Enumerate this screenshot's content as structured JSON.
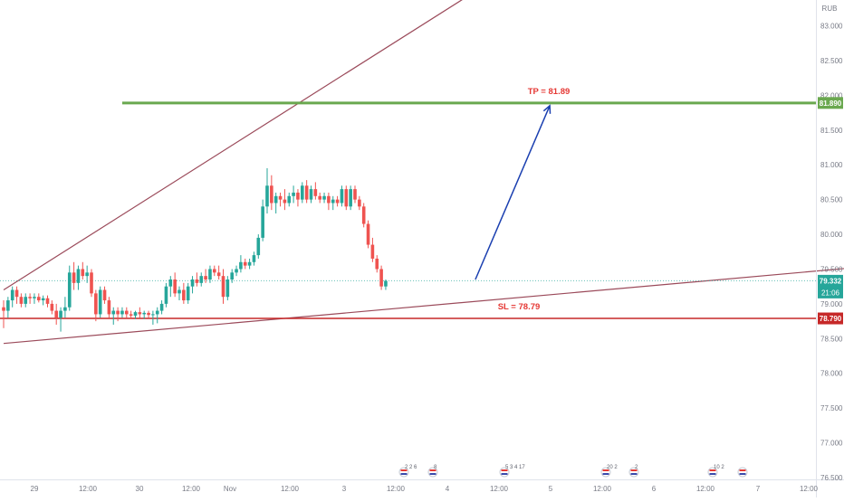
{
  "chart_data": {
    "type": "candlestick",
    "currency": "RUB",
    "price_axis": {
      "ylim": [
        76.5,
        83.15
      ],
      "ticks": [
        "83.000",
        "82.500",
        "82.000",
        "81.500",
        "81.000",
        "80.500",
        "80.000",
        "79.500",
        "79.000",
        "78.500",
        "78.000",
        "77.500",
        "77.000",
        "76.500"
      ]
    },
    "time_axis": {
      "ticks": [
        "29",
        "12:00",
        "30",
        "12:00",
        "Nov",
        "12:00",
        "3",
        "12:00",
        "4",
        "12:00",
        "5",
        "12:00",
        "6",
        "12:00",
        "7",
        "12:00"
      ]
    },
    "current_price": {
      "value": "79.332",
      "countdown": "21:06"
    },
    "levels": [
      {
        "name": "TP",
        "label": "TP = 81.89",
        "value": 81.89,
        "axis_label": "81.890",
        "color": "#6aa84f",
        "label_color": "#e53935"
      },
      {
        "name": "SL",
        "label": "SL = 78.79",
        "value": 78.79,
        "axis_label": "78.790",
        "color": "#c62828",
        "label_color": "#e53935"
      }
    ],
    "trendlines": [
      {
        "name": "upper-channel",
        "from": [
          0,
          79.2
        ],
        "to": [
          105,
          83.4
        ],
        "color": "#9b4a5a"
      },
      {
        "name": "lower-channel",
        "from": [
          0,
          78.43
        ],
        "to": [
          270,
          79.95
        ],
        "color": "#9b4a5a"
      }
    ],
    "projection_arrow": {
      "from": [
        107,
        79.35
      ],
      "to": [
        126,
        81.89
      ],
      "color": "#1a3fb0"
    },
    "candles": [
      [
        78.95,
        79.05,
        78.65,
        78.9
      ],
      [
        78.9,
        79.1,
        78.8,
        79.05
      ],
      [
        79.05,
        79.25,
        78.95,
        79.2
      ],
      [
        79.2,
        79.25,
        79.0,
        79.1
      ],
      [
        79.1,
        79.15,
        78.95,
        79.0
      ],
      [
        79.0,
        79.15,
        78.95,
        79.1
      ],
      [
        79.1,
        79.15,
        79.0,
        79.08
      ],
      [
        79.08,
        79.15,
        79.0,
        79.1
      ],
      [
        79.1,
        79.15,
        79.02,
        79.05
      ],
      [
        79.05,
        79.12,
        78.98,
        79.08
      ],
      [
        79.08,
        79.12,
        78.95,
        79.0
      ],
      [
        79.0,
        79.05,
        78.85,
        78.9
      ],
      [
        78.9,
        79.0,
        78.7,
        78.8
      ],
      [
        78.8,
        78.95,
        78.6,
        78.9
      ],
      [
        78.9,
        79.1,
        78.8,
        78.95
      ],
      [
        78.95,
        79.55,
        78.9,
        79.45
      ],
      [
        79.45,
        79.6,
        79.2,
        79.3
      ],
      [
        79.3,
        79.55,
        79.2,
        79.5
      ],
      [
        79.5,
        79.6,
        79.35,
        79.4
      ],
      [
        79.4,
        79.55,
        79.3,
        79.45
      ],
      [
        79.45,
        79.5,
        79.1,
        79.15
      ],
      [
        79.15,
        79.2,
        78.75,
        78.85
      ],
      [
        78.85,
        79.25,
        78.8,
        79.2
      ],
      [
        79.2,
        79.25,
        79.0,
        79.05
      ],
      [
        79.05,
        79.1,
        78.8,
        78.85
      ],
      [
        78.85,
        78.95,
        78.7,
        78.9
      ],
      [
        78.9,
        78.95,
        78.75,
        78.85
      ],
      [
        78.85,
        78.95,
        78.8,
        78.9
      ],
      [
        78.9,
        78.95,
        78.8,
        78.85
      ],
      [
        78.85,
        78.9,
        78.78,
        78.83
      ],
      [
        78.83,
        78.9,
        78.78,
        78.88
      ],
      [
        78.88,
        78.95,
        78.8,
        78.85
      ],
      [
        78.85,
        78.9,
        78.78,
        78.87
      ],
      [
        78.87,
        78.9,
        78.8,
        78.84
      ],
      [
        78.84,
        78.9,
        78.7,
        78.85
      ],
      [
        78.85,
        78.95,
        78.72,
        78.9
      ],
      [
        78.9,
        79.05,
        78.85,
        79.0
      ],
      [
        79.0,
        79.3,
        78.95,
        79.25
      ],
      [
        79.25,
        79.4,
        79.1,
        79.35
      ],
      [
        79.35,
        79.45,
        79.1,
        79.15
      ],
      [
        79.15,
        79.25,
        79.05,
        79.2
      ],
      [
        79.2,
        79.3,
        79.0,
        79.05
      ],
      [
        79.05,
        79.3,
        79.0,
        79.25
      ],
      [
        79.25,
        79.4,
        79.15,
        79.35
      ],
      [
        79.35,
        79.45,
        79.25,
        79.3
      ],
      [
        79.3,
        79.45,
        79.25,
        79.4
      ],
      [
        79.4,
        79.5,
        79.3,
        79.35
      ],
      [
        79.35,
        79.55,
        79.3,
        79.5
      ],
      [
        79.5,
        79.55,
        79.4,
        79.45
      ],
      [
        79.45,
        79.55,
        79.35,
        79.4
      ],
      [
        79.4,
        79.5,
        79.0,
        79.1
      ],
      [
        79.1,
        79.4,
        79.05,
        79.35
      ],
      [
        79.35,
        79.5,
        79.3,
        79.45
      ],
      [
        79.45,
        79.55,
        79.4,
        79.5
      ],
      [
        79.5,
        79.7,
        79.45,
        79.6
      ],
      [
        79.6,
        79.65,
        79.5,
        79.55
      ],
      [
        79.55,
        79.65,
        79.5,
        79.6
      ],
      [
        79.6,
        79.75,
        79.55,
        79.7
      ],
      [
        79.7,
        80.0,
        79.65,
        79.95
      ],
      [
        79.95,
        80.5,
        79.9,
        80.4
      ],
      [
        80.4,
        80.95,
        80.3,
        80.7
      ],
      [
        80.7,
        80.85,
        80.35,
        80.45
      ],
      [
        80.45,
        80.6,
        80.3,
        80.55
      ],
      [
        80.55,
        80.6,
        80.4,
        80.5
      ],
      [
        80.5,
        80.65,
        80.35,
        80.45
      ],
      [
        80.45,
        80.6,
        80.4,
        80.55
      ],
      [
        80.55,
        80.7,
        80.45,
        80.6
      ],
      [
        80.6,
        80.65,
        80.4,
        80.5
      ],
      [
        80.5,
        80.75,
        80.45,
        80.7
      ],
      [
        80.7,
        80.78,
        80.45,
        80.5
      ],
      [
        80.5,
        80.7,
        80.45,
        80.65
      ],
      [
        80.65,
        80.75,
        80.5,
        80.55
      ],
      [
        80.55,
        80.6,
        80.45,
        80.5
      ],
      [
        80.5,
        80.6,
        80.45,
        80.55
      ],
      [
        80.55,
        80.6,
        80.35,
        80.45
      ],
      [
        80.45,
        80.55,
        80.35,
        80.5
      ],
      [
        80.5,
        80.55,
        80.4,
        80.45
      ],
      [
        80.45,
        80.7,
        80.4,
        80.65
      ],
      [
        80.65,
        80.7,
        80.35,
        80.4
      ],
      [
        80.4,
        80.7,
        80.35,
        80.65
      ],
      [
        80.65,
        80.7,
        80.45,
        80.5
      ],
      [
        80.5,
        80.55,
        80.35,
        80.4
      ],
      [
        80.4,
        80.45,
        80.1,
        80.15
      ],
      [
        80.15,
        80.2,
        79.8,
        79.85
      ],
      [
        79.85,
        79.95,
        79.6,
        79.65
      ],
      [
        79.65,
        79.7,
        79.45,
        79.5
      ],
      [
        79.5,
        79.55,
        79.2,
        79.25
      ],
      [
        79.25,
        79.35,
        79.2,
        79.33
      ]
    ],
    "event_markers": [
      {
        "count": "2 2 6"
      },
      {
        "count": "8"
      },
      {
        "count": "5 3 4 17"
      },
      {
        "count": "20 2"
      },
      {
        "count": "2"
      },
      {
        "count": "10 2"
      },
      {
        "count": ""
      }
    ]
  }
}
